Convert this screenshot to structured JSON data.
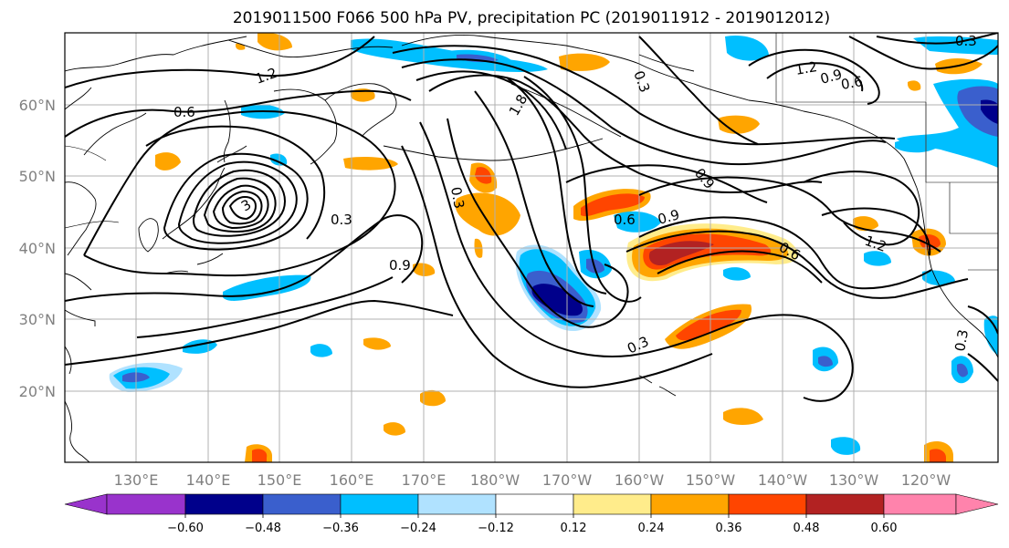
{
  "title": "2019011500 F066 500 hPa PV, precipitation PC (2019011912 - 2019012012)",
  "map": {
    "lon_labels": [
      "130°E",
      "140°E",
      "150°E",
      "160°E",
      "170°E",
      "180°W",
      "170°W",
      "160°W",
      "150°W",
      "140°W",
      "130°W",
      "120°W"
    ],
    "lat_labels": [
      "60°N",
      "50°N",
      "40°N",
      "30°N",
      "20°N"
    ],
    "gridlines": true
  },
  "colorbar": {
    "colors": [
      "#9933cc",
      "#00008b",
      "#3a5fcd",
      "#00bfff",
      "#b0e2ff",
      "#ffffff",
      "#ffec8b",
      "#ffa500",
      "#ff4500",
      "#b22222",
      "#ff83ac"
    ],
    "tick_labels": [
      "−0.60",
      "−0.48",
      "−0.36",
      "−0.24",
      "−0.12",
      "0.12",
      "0.24",
      "0.36",
      "0.48",
      "0.60"
    ],
    "extend": "both"
  },
  "contour_labels": [
    {
      "text": "1.2"
    },
    {
      "text": "0.6"
    },
    {
      "text": "0.3"
    },
    {
      "text": "0.9"
    },
    {
      "text": "0.3"
    },
    {
      "text": "1.8"
    },
    {
      "text": "0.3"
    },
    {
      "text": "0.9"
    },
    {
      "text": "0.6"
    },
    {
      "text": "0.9"
    },
    {
      "text": "0.6"
    },
    {
      "text": "1.2"
    },
    {
      "text": "0.3"
    },
    {
      "text": "1.2"
    },
    {
      "text": "0.9"
    },
    {
      "text": "0.6"
    },
    {
      "text": "0.3"
    },
    {
      "text": "0.3"
    },
    {
      "text": "3"
    }
  ],
  "shading_colors": {
    "yellow": "#ffec8b",
    "orange": "#ffa500",
    "red": "#ff4500",
    "darkred": "#b22222",
    "lightblue": "#b0e2ff",
    "skyblue": "#00bfff",
    "blue": "#3a5fcd",
    "navy": "#00008b"
  }
}
